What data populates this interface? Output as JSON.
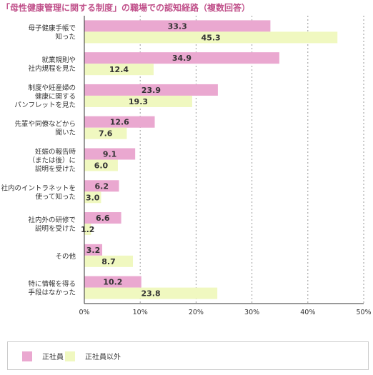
{
  "title": "「母性健康管理に関する制度」の職場での認知経路（複数回答）",
  "colors": {
    "series1": "#eaa8d0",
    "series2": "#f0f8c0",
    "axis": "#333333",
    "grid": "#999999",
    "title": "#c0508a"
  },
  "chart_data": {
    "type": "bar",
    "orientation": "horizontal",
    "title": "「母性健康管理に関する制度」の職場での認知経路（複数回答）",
    "categories": [
      [
        "母子健康手帳で",
        "知った"
      ],
      [
        "就業規則や",
        "社内規程を見た"
      ],
      [
        "制度や妊産婦の",
        "健康に関する",
        "パンフレットを見た"
      ],
      [
        "先輩や同僚などから",
        "聞いた"
      ],
      [
        "妊娠の報告時",
        "（または後）に",
        "説明を受けた"
      ],
      [
        "社内のイントラネットを",
        "使って知った"
      ],
      [
        "社内外の研修で",
        "説明を受けた"
      ],
      [
        "その他"
      ],
      [
        "特に情報を得る",
        "手段はなかった"
      ]
    ],
    "series": [
      {
        "name": "正社員",
        "values": [
          33.3,
          34.9,
          23.9,
          12.6,
          9.1,
          6.2,
          6.6,
          3.2,
          10.2
        ]
      },
      {
        "name": "正社員以外",
        "values": [
          45.3,
          12.4,
          19.3,
          7.6,
          6.0,
          3.0,
          1.2,
          8.7,
          23.8
        ]
      }
    ],
    "xlim": [
      0,
      50
    ],
    "ticks": [
      "0%",
      "10%",
      "20%",
      "30%",
      "40%",
      "50%"
    ],
    "grid": true,
    "legend": "bottom"
  },
  "legend": [
    {
      "label": "正社員"
    },
    {
      "label": "正社員以外"
    }
  ]
}
